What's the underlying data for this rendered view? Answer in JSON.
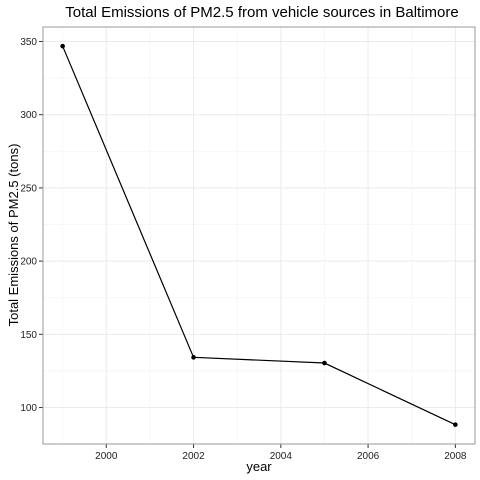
{
  "chart_data": {
    "type": "line",
    "title": "Total Emissions of PM2.5 from vehicle sources in Baltimore",
    "xlabel": "year",
    "ylabel": "Total Emissions of PM2.5 (tons)",
    "x": [
      1999,
      2002,
      2005,
      2008
    ],
    "series": [
      {
        "values": [
          346.8,
          134.3,
          130.4,
          88.3
        ]
      }
    ],
    "xlim": [
      1998.55,
      2008.45
    ],
    "ylim": [
      75.1,
      359.9
    ],
    "x_ticks": [
      2000,
      2002,
      2004,
      2006,
      2008
    ],
    "x_tick_labels": [
      "2000",
      "2002",
      "2004",
      "2006",
      "2008"
    ],
    "y_ticks": [
      100,
      150,
      200,
      250,
      300,
      350
    ],
    "y_tick_labels": [
      "100",
      "150",
      "200",
      "250",
      "300",
      "350"
    ],
    "x_minor_ticks": [
      1999,
      2001,
      2003,
      2005,
      2007
    ],
    "y_minor_ticks": [
      125,
      175,
      225,
      275,
      325
    ],
    "grid": true,
    "legend": "none",
    "colors": {
      "line": "#000000",
      "point": "#000000",
      "grid": "#ebebeb",
      "border": "#999999"
    }
  }
}
